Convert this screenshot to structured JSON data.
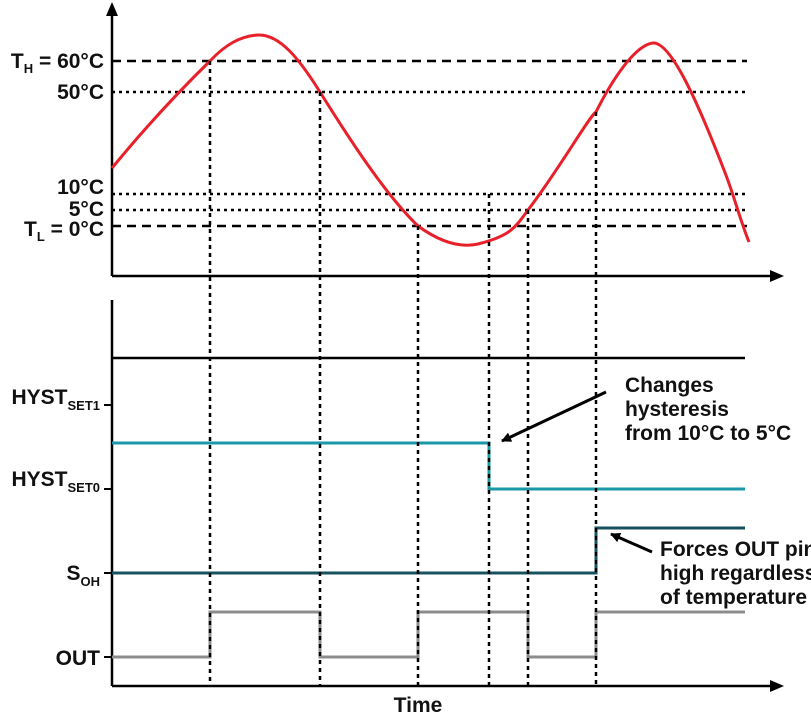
{
  "colors": {
    "axis": "#000000",
    "temperature_curve": "#e8202a",
    "hyst_signal": "#1a98a8",
    "soh_signal": "#17525e",
    "out_signal": "#8c8c8c",
    "annotation": "#000000"
  },
  "temperature_plot": {
    "levels": [
      {
        "main": "T",
        "sub": "H",
        "tail": " = 60°C",
        "style": "dashed"
      },
      {
        "main": "50°C",
        "sub": "",
        "tail": "",
        "style": "dotted"
      },
      {
        "main": "10°C",
        "sub": "",
        "tail": "",
        "style": "dotted"
      },
      {
        "main": "5°C",
        "sub": "",
        "tail": "",
        "style": "dotted"
      },
      {
        "main": "T",
        "sub": "L",
        "tail": " = 0°C",
        "style": "dashed"
      }
    ]
  },
  "signals": {
    "hyst_set1": {
      "main": "HYST",
      "sub": "SET1"
    },
    "hyst_set0": {
      "main": "HYST",
      "sub": "SET0"
    },
    "soh": {
      "main": "S",
      "sub": "OH"
    },
    "out": {
      "main": "OUT"
    }
  },
  "x_axis_label": "Time",
  "annotations": {
    "hysteresis_change": [
      "Changes",
      "hysteresis",
      "from 10°C to 5°C"
    ],
    "force_out_high": [
      "Forces OUT pin",
      "high regardless",
      "of temperature"
    ]
  }
}
